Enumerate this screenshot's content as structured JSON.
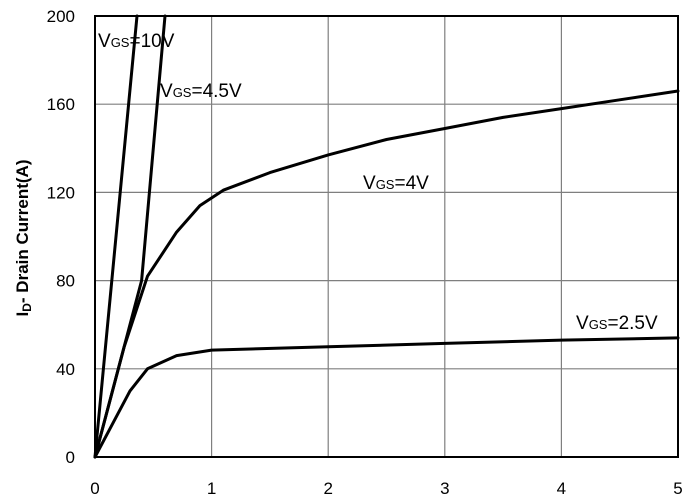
{
  "chart_data": {
    "type": "line",
    "title": "",
    "xlabel": "",
    "ylabel": {
      "main": "I",
      "sub": "D",
      "rest": "- Drain Current(A)"
    },
    "xlim": [
      0,
      5
    ],
    "ylim": [
      0,
      200
    ],
    "x_ticks": [
      "0",
      "1",
      "2",
      "3",
      "4",
      "5"
    ],
    "y_ticks": [
      "0",
      "40",
      "80",
      "120",
      "160",
      "200"
    ],
    "grid": true,
    "series": [
      {
        "name": "VGS=10V",
        "label": {
          "main": "V",
          "sub": "GS",
          "rest": "=10V"
        },
        "points": [
          [
            0,
            0
          ],
          [
            0.36,
            200
          ]
        ]
      },
      {
        "name": "VGS=4.5V",
        "label": {
          "main": "V",
          "sub": "GS",
          "rest": "=4.5V"
        },
        "points": [
          [
            0,
            0
          ],
          [
            0.2,
            40
          ],
          [
            0.4,
            80
          ],
          [
            0.6,
            200
          ]
        ]
      },
      {
        "name": "VGS=4V",
        "label": {
          "main": "V",
          "sub": "GS",
          "rest": "=4V"
        },
        "points": [
          [
            0,
            0
          ],
          [
            0.1,
            20
          ],
          [
            0.25,
            50
          ],
          [
            0.45,
            82
          ],
          [
            0.7,
            102
          ],
          [
            0.9,
            114
          ],
          [
            1.1,
            121
          ],
          [
            1.5,
            129
          ],
          [
            2,
            137
          ],
          [
            2.5,
            144
          ],
          [
            3,
            149
          ],
          [
            3.5,
            154
          ],
          [
            4,
            158
          ],
          [
            4.5,
            162
          ],
          [
            5,
            166
          ]
        ]
      },
      {
        "name": "VGS=2.5V",
        "label": {
          "main": "V",
          "sub": "GS",
          "rest": "=2.5V"
        },
        "points": [
          [
            0,
            0
          ],
          [
            0.15,
            15
          ],
          [
            0.3,
            30
          ],
          [
            0.45,
            40
          ],
          [
            0.7,
            46
          ],
          [
            1,
            48.5
          ],
          [
            2,
            50
          ],
          [
            3,
            51.5
          ],
          [
            4,
            53
          ],
          [
            5,
            54
          ]
        ]
      }
    ]
  }
}
